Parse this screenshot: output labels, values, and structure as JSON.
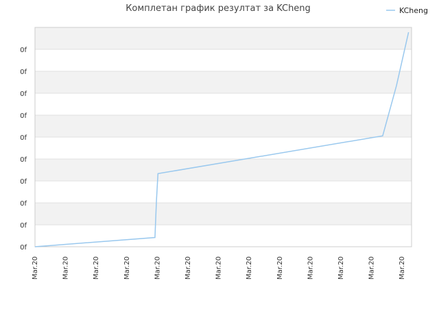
{
  "chart_data": {
    "type": "line",
    "title": "Комплетан график резултат за KCheng",
    "xlabel": "",
    "ylabel": "",
    "x_tick_labels": [
      "Mar.20",
      "Mar.20",
      "Mar.20",
      "Mar.20",
      "Mar.20",
      "Mar.20",
      "Mar.20",
      "Mar.20",
      "Mar.20",
      "Mar.20",
      "Mar.20",
      "Mar.20",
      "Mar.20"
    ],
    "y_tick_labels": [
      "0f",
      "0f",
      "0f",
      "0f",
      "0f",
      "0f",
      "0f",
      "0f",
      "0f",
      "0f"
    ],
    "xlim": [
      0,
      12.4
    ],
    "ylim": [
      0,
      9
    ],
    "grid": true,
    "legend_position": "top-right",
    "colors": {
      "line": "#99c8ee",
      "band": "#f2f2f2",
      "gridline": "#e0e0e0",
      "axis": "#cccccc"
    },
    "series": [
      {
        "name": "KCheng",
        "x": [
          0,
          3.95,
          4.0,
          4.05,
          11.45,
          11.9,
          12.3
        ],
        "y": [
          0,
          0.38,
          1.9,
          3.0,
          4.55,
          6.6,
          8.8
        ]
      }
    ]
  }
}
